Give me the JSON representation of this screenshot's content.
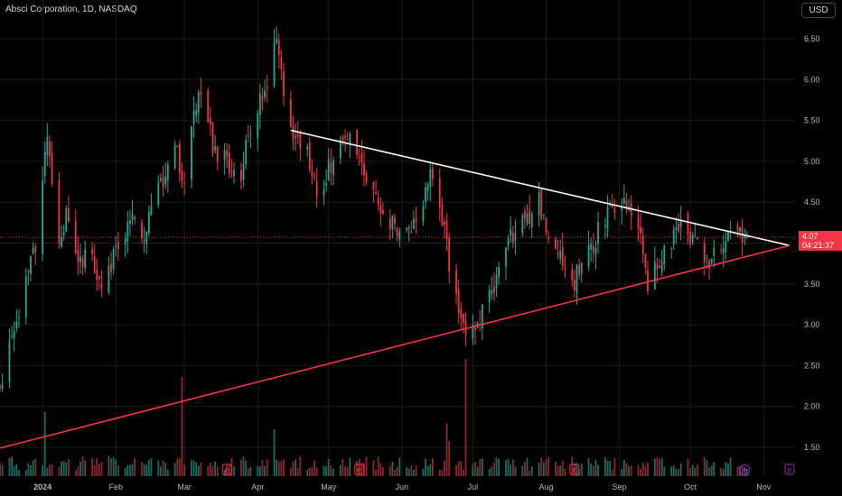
{
  "header": {
    "title": "Absci Corporation, 1D, NASDAQ",
    "currency": "USD"
  },
  "price_tag": {
    "price": "4.07",
    "countdown": "04:21:37"
  },
  "colors": {
    "up": "#22ab94",
    "down": "#f23645",
    "volume_up": "#1b6b5e",
    "volume_down": "#8c2631",
    "upper_trendline": "#ffffff",
    "lower_trendline": "#f23645",
    "grid": "#1a1a1a",
    "background": "#000000"
  },
  "chart_data": {
    "type": "candlestick",
    "y_axis": {
      "side": "right",
      "ticks": [
        "6.50",
        "6.00",
        "5.50",
        "5.00",
        "4.50",
        "4.00",
        "3.50",
        "3.00",
        "2.50",
        "2.00",
        "1.50"
      ],
      "range": [
        1.25,
        6.75
      ]
    },
    "x_axis": {
      "ticks": [
        {
          "date": "2024-01-01",
          "label": "2024",
          "bold": true
        },
        {
          "date": "2024-02-01",
          "label": "Feb"
        },
        {
          "date": "2024-03-01",
          "label": "Mar"
        },
        {
          "date": "2024-04-01",
          "label": "Apr"
        },
        {
          "date": "2024-05-01",
          "label": "May"
        },
        {
          "date": "2024-06-01",
          "label": "Jun"
        },
        {
          "date": "2024-07-01",
          "label": "Jul"
        },
        {
          "date": "2024-08-01",
          "label": "Aug"
        },
        {
          "date": "2024-09-01",
          "label": "Sep"
        },
        {
          "date": "2024-10-01",
          "label": "Oct"
        },
        {
          "date": "2024-11-01",
          "label": "Nov"
        }
      ]
    },
    "grid": true,
    "price_path": [
      [
        "2023-12-14",
        2.3
      ],
      [
        "2023-12-22",
        3.05
      ],
      [
        "2023-12-29",
        4.0
      ],
      [
        "2024-01-03",
        5.35
      ],
      [
        "2024-01-08",
        3.9
      ],
      [
        "2024-01-11",
        4.3
      ],
      [
        "2024-01-16",
        3.65
      ],
      [
        "2024-01-19",
        3.95
      ],
      [
        "2024-01-26",
        3.55
      ],
      [
        "2024-02-02",
        3.95
      ],
      [
        "2024-02-07",
        4.35
      ],
      [
        "2024-02-12",
        4.05
      ],
      [
        "2024-02-19",
        4.65
      ],
      [
        "2024-02-26",
        5.2
      ],
      [
        "2024-03-01",
        4.75
      ],
      [
        "2024-03-05",
        5.6
      ],
      [
        "2024-03-08",
        5.95
      ],
      [
        "2024-03-13",
        5.2
      ],
      [
        "2024-03-18",
        5.0
      ],
      [
        "2024-03-25",
        4.85
      ],
      [
        "2024-03-29",
        5.4
      ],
      [
        "2024-04-04",
        5.85
      ],
      [
        "2024-04-08",
        6.55
      ],
      [
        "2024-04-11",
        6.05
      ],
      [
        "2024-04-16",
        5.4
      ],
      [
        "2024-04-22",
        5.05
      ],
      [
        "2024-04-26",
        4.55
      ],
      [
        "2024-05-02",
        5.0
      ],
      [
        "2024-05-09",
        5.25
      ],
      [
        "2024-05-16",
        4.95
      ],
      [
        "2024-05-21",
        4.55
      ],
      [
        "2024-05-28",
        4.25
      ],
      [
        "2024-06-03",
        4.15
      ],
      [
        "2024-06-10",
        4.55
      ],
      [
        "2024-06-14",
        4.85
      ],
      [
        "2024-06-20",
        3.95
      ],
      [
        "2024-06-24",
        3.3
      ],
      [
        "2024-06-27",
        2.95
      ],
      [
        "2024-07-03",
        3.05
      ],
      [
        "2024-07-10",
        3.45
      ],
      [
        "2024-07-15",
        4.05
      ],
      [
        "2024-07-22",
        4.25
      ],
      [
        "2024-07-29",
        4.5
      ],
      [
        "2024-08-06",
        3.85
      ],
      [
        "2024-08-12",
        3.5
      ],
      [
        "2024-08-19",
        3.9
      ],
      [
        "2024-08-26",
        4.3
      ],
      [
        "2024-09-03",
        4.5
      ],
      [
        "2024-09-09",
        4.2
      ],
      [
        "2024-09-13",
        3.5
      ],
      [
        "2024-09-19",
        3.85
      ],
      [
        "2024-09-26",
        4.25
      ],
      [
        "2024-10-02",
        4.05
      ],
      [
        "2024-10-07",
        3.75
      ],
      [
        "2024-10-11",
        3.85
      ],
      [
        "2024-10-16",
        4.05
      ],
      [
        "2024-10-22",
        4.15
      ],
      [
        "2024-10-25",
        4.07
      ]
    ],
    "volume_spikes": [
      {
        "date": "2024-01-02",
        "level": 0.55
      },
      {
        "date": "2024-02-29",
        "level": 0.85
      },
      {
        "date": "2024-04-08",
        "level": 0.4
      },
      {
        "date": "2024-06-20",
        "level": 0.45
      },
      {
        "date": "2024-06-21",
        "level": 0.3
      },
      {
        "date": "2024-06-28",
        "level": 1.0
      }
    ],
    "earnings_markers": [
      "2024-03-19",
      "2024-05-14",
      "2024-08-13"
    ],
    "dividend_markers": [
      "2024-10-24"
    ],
    "upcoming_earnings": [
      "2024-11-12"
    ],
    "trendlines": [
      {
        "name": "upper",
        "color": "white",
        "points": [
          [
            "2024-04-15",
            5.38
          ],
          [
            "2024-11-12",
            3.97
          ]
        ]
      },
      {
        "name": "lower",
        "color": "red",
        "points": [
          [
            "2023-12-14",
            1.49
          ],
          [
            "2024-11-12",
            3.97
          ]
        ]
      }
    ],
    "last_price": 4.07
  }
}
